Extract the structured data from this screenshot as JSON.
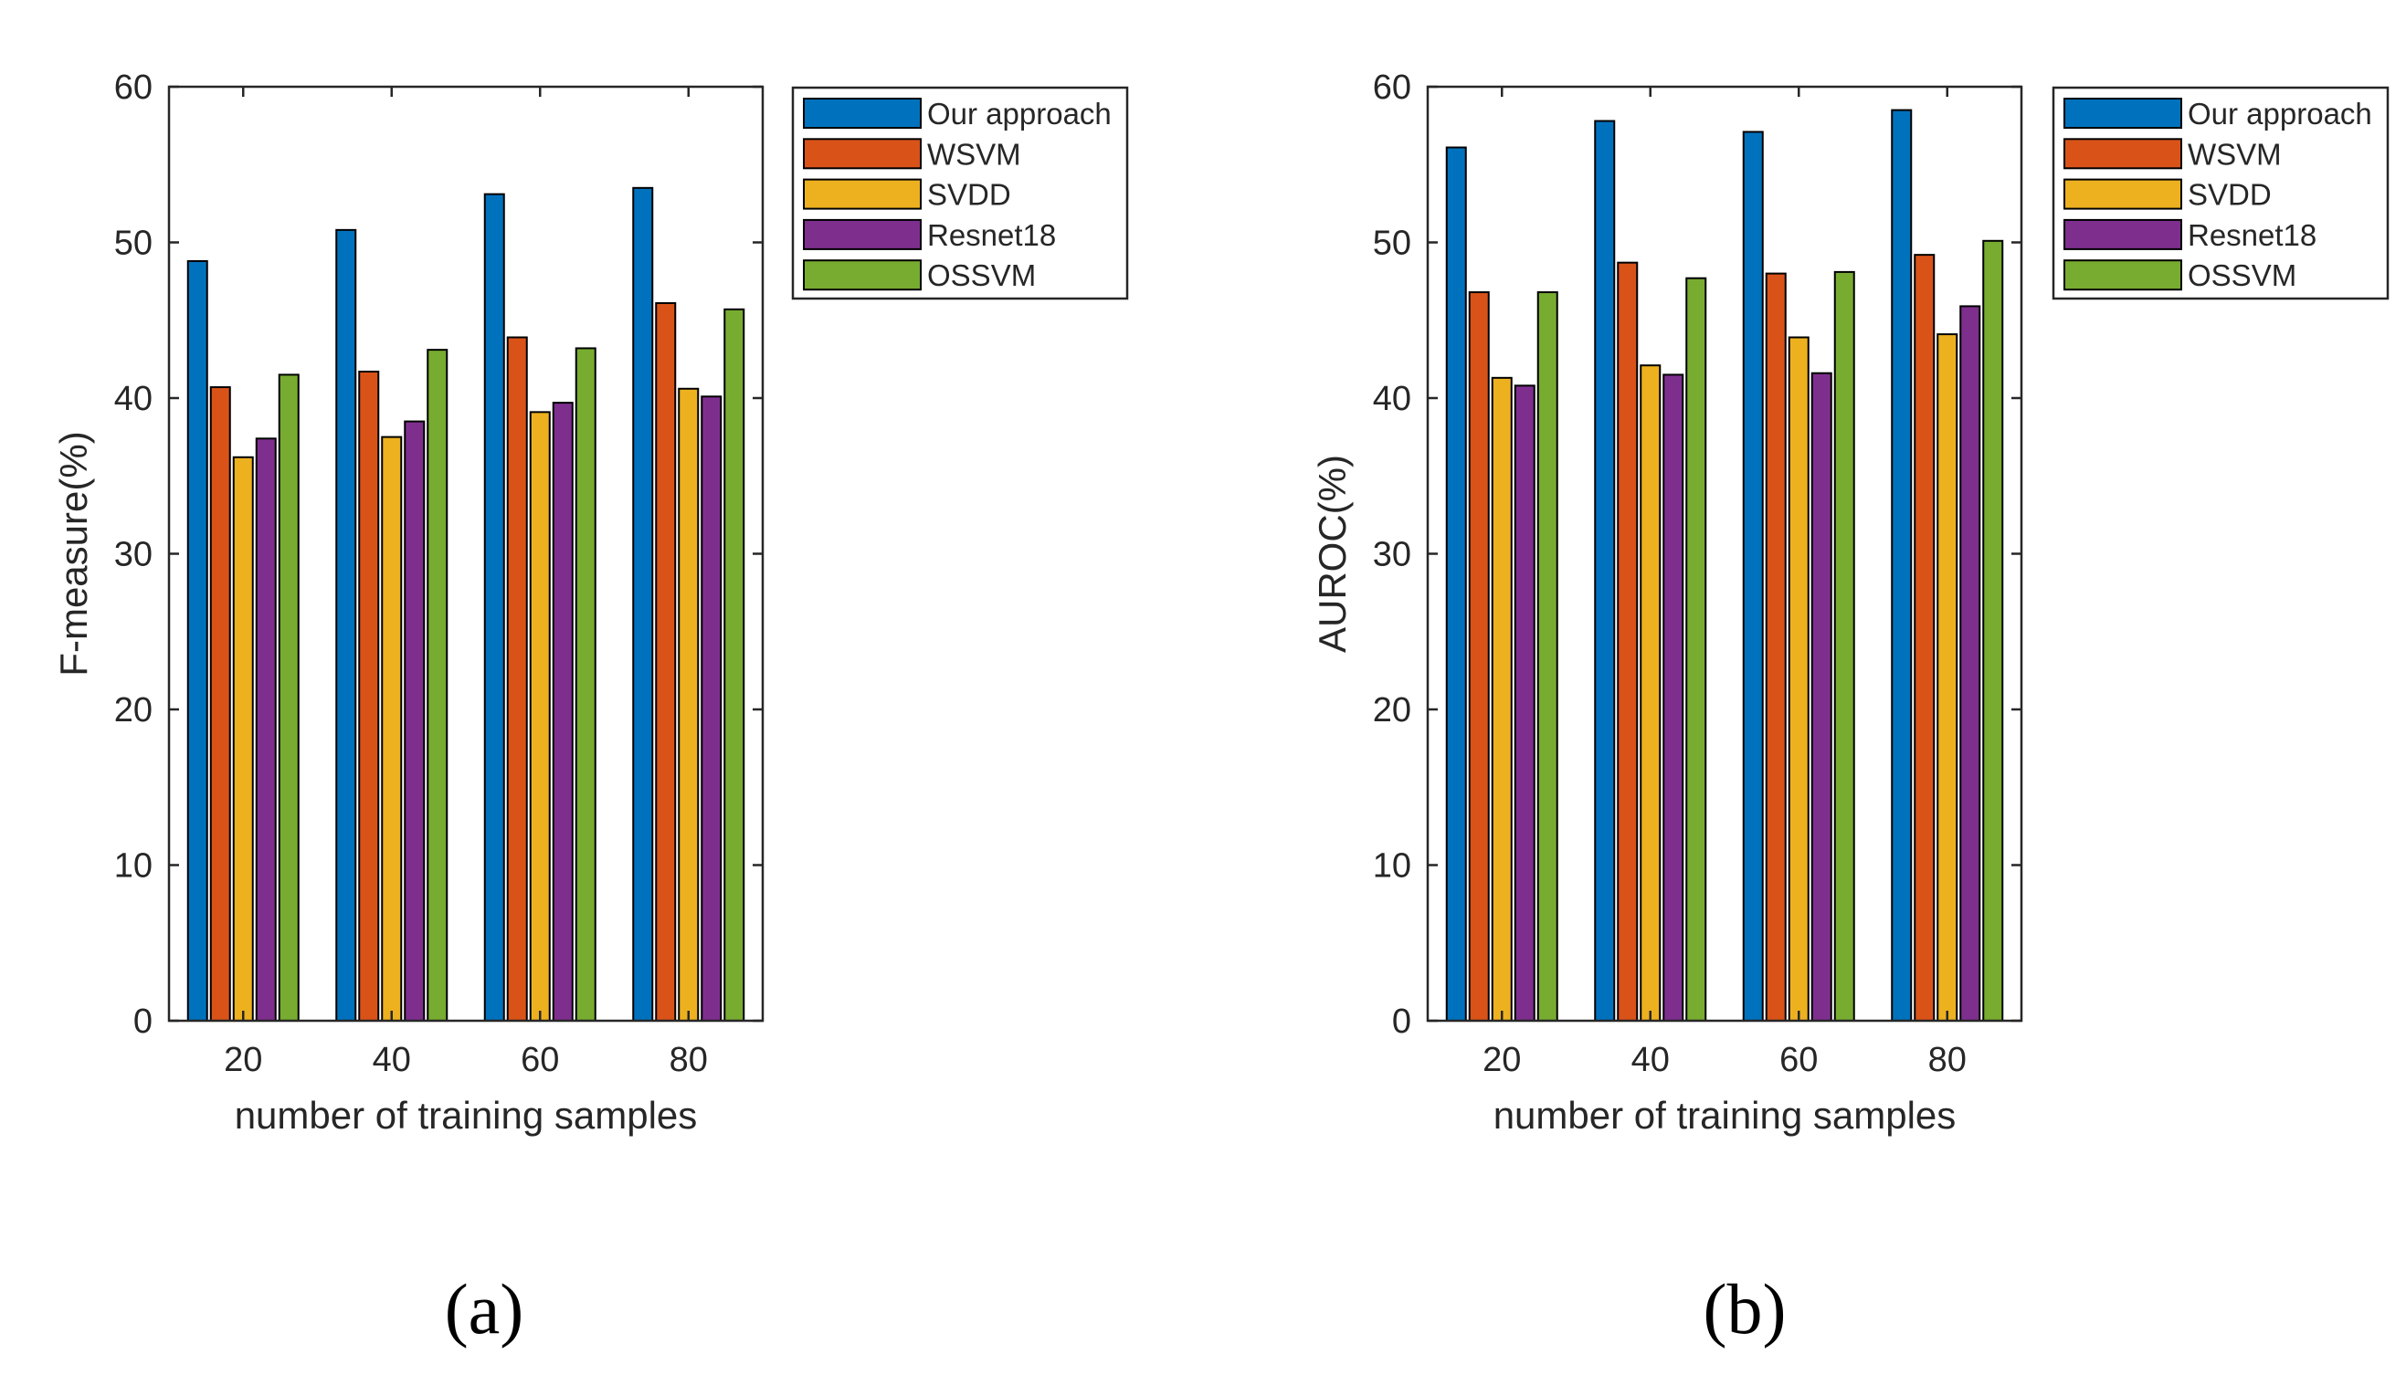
{
  "chart_data": [
    {
      "type": "bar",
      "panel_label": "(a)",
      "xlabel": "number of training samples",
      "ylabel": "F-measure(%)",
      "categories": [
        "20",
        "40",
        "60",
        "80"
      ],
      "ylim": [
        0,
        60
      ],
      "yticks": [
        "0",
        "10",
        "20",
        "30",
        "40",
        "50",
        "60"
      ],
      "grid": false,
      "legend_position": "outside-right-top",
      "series": [
        {
          "name": "Our approach",
          "color": "#0072BD",
          "values": [
            48.8,
            50.8,
            53.1,
            53.5
          ]
        },
        {
          "name": "WSVM",
          "color": "#D95319",
          "values": [
            40.7,
            41.7,
            43.9,
            46.1
          ]
        },
        {
          "name": "SVDD",
          "color": "#EDB120",
          "values": [
            36.2,
            37.5,
            39.1,
            40.6
          ]
        },
        {
          "name": "Resnet18",
          "color": "#7E2F8E",
          "values": [
            37.4,
            38.5,
            39.7,
            40.1
          ]
        },
        {
          "name": "OSSVM",
          "color": "#77AC30",
          "values": [
            41.5,
            43.1,
            43.2,
            45.7
          ]
        }
      ]
    },
    {
      "type": "bar",
      "panel_label": "(b)",
      "xlabel": "number of training samples",
      "ylabel": "AUROC(%)",
      "categories": [
        "20",
        "40",
        "60",
        "80"
      ],
      "ylim": [
        0,
        60
      ],
      "yticks": [
        "0",
        "10",
        "20",
        "30",
        "40",
        "50",
        "60"
      ],
      "grid": false,
      "legend_position": "outside-right-top",
      "series": [
        {
          "name": "Our approach",
          "color": "#0072BD",
          "values": [
            56.1,
            57.8,
            57.1,
            58.5
          ]
        },
        {
          "name": "WSVM",
          "color": "#D95319",
          "values": [
            46.8,
            48.7,
            48.0,
            49.2
          ]
        },
        {
          "name": "SVDD",
          "color": "#EDB120",
          "values": [
            41.3,
            42.1,
            43.9,
            44.1
          ]
        },
        {
          "name": "Resnet18",
          "color": "#7E2F8E",
          "values": [
            40.8,
            41.5,
            41.6,
            45.9
          ]
        },
        {
          "name": "OSSVM",
          "color": "#77AC30",
          "values": [
            46.8,
            47.7,
            48.1,
            50.1
          ]
        }
      ]
    }
  ]
}
